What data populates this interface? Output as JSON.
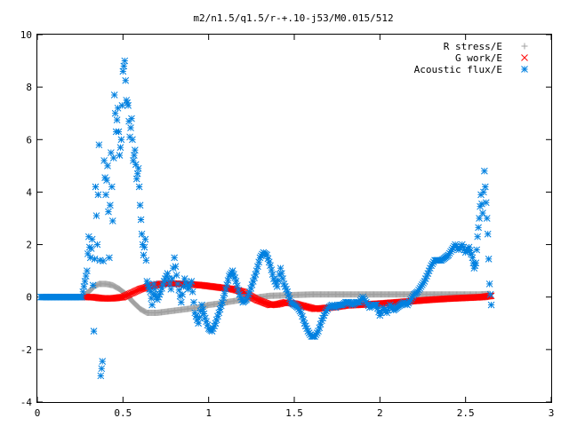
{
  "chart_data": {
    "type": "scatter",
    "title": "m2/n1.5/q1.5/r-+.10-j53/M0.015/512",
    "xlabel": "",
    "ylabel": "",
    "xlim": [
      0,
      3
    ],
    "ylim": [
      -4,
      10
    ],
    "x_ticks": [
      0,
      0.5,
      1,
      1.5,
      2,
      2.5,
      3
    ],
    "x_tick_labels": [
      "0",
      "0.5",
      "1",
      "1.5",
      "2",
      "2.5",
      "3"
    ],
    "y_ticks": [
      -4,
      -2,
      0,
      2,
      4,
      6,
      8,
      10
    ],
    "y_tick_labels": [
      "-4",
      "-2",
      "0",
      "2",
      "4",
      "6",
      "8",
      "10"
    ],
    "grid": false,
    "legend_position": "top-right",
    "series": [
      {
        "name": "R stress/E",
        "marker": "plus",
        "color": "#a0a0a0",
        "points": [
          [
            0.27,
            0.05
          ],
          [
            0.3,
            0.2
          ],
          [
            0.33,
            0.4
          ],
          [
            0.36,
            0.5
          ],
          [
            0.4,
            0.5
          ],
          [
            0.44,
            0.45
          ],
          [
            0.48,
            0.3
          ],
          [
            0.52,
            0.1
          ],
          [
            0.56,
            -0.2
          ],
          [
            0.6,
            -0.45
          ],
          [
            0.64,
            -0.6
          ],
          [
            0.7,
            -0.6
          ],
          [
            0.76,
            -0.55
          ],
          [
            0.82,
            -0.5
          ],
          [
            0.88,
            -0.45
          ],
          [
            0.94,
            -0.4
          ],
          [
            1.0,
            -0.3
          ],
          [
            1.06,
            -0.25
          ],
          [
            1.12,
            -0.18
          ],
          [
            1.18,
            -0.12
          ],
          [
            1.24,
            -0.06
          ],
          [
            1.3,
            0.0
          ],
          [
            1.36,
            0.05
          ],
          [
            1.42,
            0.06
          ],
          [
            1.5,
            0.08
          ],
          [
            1.6,
            0.1
          ],
          [
            1.7,
            0.1
          ],
          [
            1.8,
            0.1
          ],
          [
            1.9,
            0.1
          ],
          [
            2.0,
            0.1
          ],
          [
            2.1,
            0.1
          ],
          [
            2.2,
            0.1
          ],
          [
            2.3,
            0.1
          ],
          [
            2.4,
            0.1
          ],
          [
            2.5,
            0.1
          ],
          [
            2.58,
            0.1
          ],
          [
            2.64,
            0.12
          ]
        ]
      },
      {
        "name": "G work/E",
        "marker": "cross",
        "color": "#ff0000",
        "points": [
          [
            0.27,
            0.0
          ],
          [
            0.32,
            0.0
          ],
          [
            0.38,
            -0.05
          ],
          [
            0.44,
            -0.05
          ],
          [
            0.5,
            0.0
          ],
          [
            0.55,
            0.15
          ],
          [
            0.6,
            0.3
          ],
          [
            0.66,
            0.42
          ],
          [
            0.72,
            0.5
          ],
          [
            0.78,
            0.52
          ],
          [
            0.84,
            0.5
          ],
          [
            0.9,
            0.48
          ],
          [
            0.96,
            0.45
          ],
          [
            1.02,
            0.4
          ],
          [
            1.08,
            0.35
          ],
          [
            1.14,
            0.3
          ],
          [
            1.2,
            0.2
          ],
          [
            1.24,
            0.05
          ],
          [
            1.28,
            -0.1
          ],
          [
            1.32,
            -0.2
          ],
          [
            1.36,
            -0.3
          ],
          [
            1.4,
            -0.28
          ],
          [
            1.45,
            -0.2
          ],
          [
            1.5,
            -0.25
          ],
          [
            1.56,
            -0.35
          ],
          [
            1.62,
            -0.45
          ],
          [
            1.68,
            -0.42
          ],
          [
            1.74,
            -0.38
          ],
          [
            1.8,
            -0.32
          ],
          [
            1.86,
            -0.3
          ],
          [
            1.92,
            -0.28
          ],
          [
            2.0,
            -0.25
          ],
          [
            2.1,
            -0.2
          ],
          [
            2.2,
            -0.15
          ],
          [
            2.3,
            -0.1
          ],
          [
            2.4,
            -0.06
          ],
          [
            2.5,
            -0.03
          ],
          [
            2.6,
            0.0
          ],
          [
            2.65,
            0.05
          ]
        ]
      },
      {
        "name": "Acoustic flux/E",
        "marker": "star",
        "color": "#0080e0",
        "points": [
          [
            0.02,
            0.0
          ],
          [
            0.05,
            0.0
          ],
          [
            0.08,
            0.0
          ],
          [
            0.11,
            0.0
          ],
          [
            0.14,
            0.0
          ],
          [
            0.17,
            0.0
          ],
          [
            0.2,
            0.0
          ],
          [
            0.23,
            0.0
          ],
          [
            0.26,
            0.0
          ],
          [
            0.29,
            1.0
          ],
          [
            0.3,
            2.3
          ],
          [
            0.31,
            1.5
          ],
          [
            0.32,
            2.2
          ],
          [
            0.33,
            -1.3
          ],
          [
            0.34,
            4.2
          ],
          [
            0.35,
            2.0
          ],
          [
            0.36,
            5.8
          ],
          [
            0.37,
            -3.0
          ],
          [
            0.38,
            -2.45
          ],
          [
            0.39,
            5.2
          ],
          [
            0.4,
            3.9
          ],
          [
            0.41,
            5.0
          ],
          [
            0.42,
            1.5
          ],
          [
            0.43,
            5.5
          ],
          [
            0.44,
            2.9
          ],
          [
            0.45,
            7.7
          ],
          [
            0.46,
            6.3
          ],
          [
            0.47,
            7.2
          ],
          [
            0.48,
            5.4
          ],
          [
            0.49,
            6.0
          ],
          [
            0.5,
            8.6
          ],
          [
            0.51,
            9.0
          ],
          [
            0.52,
            7.5
          ],
          [
            0.53,
            7.3
          ],
          [
            0.54,
            6.1
          ],
          [
            0.55,
            6.8
          ],
          [
            0.56,
            5.2
          ],
          [
            0.57,
            5.6
          ],
          [
            0.58,
            4.5
          ],
          [
            0.59,
            4.9
          ],
          [
            0.6,
            3.5
          ],
          [
            0.61,
            2.4
          ],
          [
            0.62,
            1.6
          ],
          [
            0.63,
            2.2
          ],
          [
            0.64,
            0.6
          ],
          [
            0.65,
            0.4
          ],
          [
            0.66,
            0.2
          ],
          [
            0.67,
            -0.3
          ],
          [
            0.68,
            0.5
          ],
          [
            0.69,
            0.1
          ],
          [
            0.7,
            -0.1
          ],
          [
            0.72,
            0.2
          ],
          [
            0.74,
            0.6
          ],
          [
            0.76,
            0.9
          ],
          [
            0.78,
            0.3
          ],
          [
            0.8,
            1.5
          ],
          [
            0.82,
            0.5
          ],
          [
            0.84,
            -0.2
          ],
          [
            0.86,
            0.7
          ],
          [
            0.88,
            0.3
          ],
          [
            0.9,
            0.6
          ],
          [
            0.92,
            -0.6
          ],
          [
            0.94,
            -1.0
          ],
          [
            0.96,
            -0.3
          ],
          [
            0.98,
            -0.8
          ],
          [
            1.0,
            -1.2
          ],
          [
            1.02,
            -1.3
          ],
          [
            1.04,
            -1.0
          ],
          [
            1.06,
            -0.6
          ],
          [
            1.08,
            -0.2
          ],
          [
            1.1,
            0.3
          ],
          [
            1.12,
            0.8
          ],
          [
            1.14,
            1.0
          ],
          [
            1.16,
            0.6
          ],
          [
            1.18,
            0.1
          ],
          [
            1.2,
            -0.2
          ],
          [
            1.22,
            -0.1
          ],
          [
            1.24,
            0.2
          ],
          [
            1.26,
            0.6
          ],
          [
            1.28,
            1.0
          ],
          [
            1.3,
            1.5
          ],
          [
            1.32,
            1.7
          ],
          [
            1.34,
            1.6
          ],
          [
            1.36,
            1.2
          ],
          [
            1.38,
            0.7
          ],
          [
            1.4,
            0.4
          ],
          [
            1.42,
            1.1
          ],
          [
            1.44,
            0.5
          ],
          [
            1.46,
            0.2
          ],
          [
            1.48,
            -0.2
          ],
          [
            1.5,
            -0.3
          ],
          [
            1.52,
            -0.4
          ],
          [
            1.54,
            -0.6
          ],
          [
            1.56,
            -1.0
          ],
          [
            1.58,
            -1.3
          ],
          [
            1.6,
            -1.5
          ],
          [
            1.62,
            -1.5
          ],
          [
            1.64,
            -1.3
          ],
          [
            1.66,
            -0.9
          ],
          [
            1.68,
            -0.6
          ],
          [
            1.7,
            -0.4
          ],
          [
            1.72,
            -0.3
          ],
          [
            1.74,
            -0.4
          ],
          [
            1.76,
            -0.3
          ],
          [
            1.78,
            -0.3
          ],
          [
            1.8,
            -0.2
          ],
          [
            1.82,
            -0.2
          ],
          [
            1.84,
            -0.3
          ],
          [
            1.86,
            -0.2
          ],
          [
            1.88,
            -0.2
          ],
          [
            1.9,
            0.0
          ],
          [
            1.92,
            -0.2
          ],
          [
            1.94,
            -0.4
          ],
          [
            1.96,
            -0.3
          ],
          [
            1.98,
            -0.3
          ],
          [
            2.0,
            -0.7
          ],
          [
            2.02,
            -0.4
          ],
          [
            2.04,
            -0.6
          ],
          [
            2.06,
            -0.3
          ],
          [
            2.08,
            -0.5
          ],
          [
            2.1,
            -0.4
          ],
          [
            2.12,
            -0.3
          ],
          [
            2.14,
            -0.2
          ],
          [
            2.16,
            -0.3
          ],
          [
            2.18,
            -0.1
          ],
          [
            2.2,
            0.1
          ],
          [
            2.22,
            0.2
          ],
          [
            2.24,
            0.4
          ],
          [
            2.26,
            0.6
          ],
          [
            2.28,
            0.9
          ],
          [
            2.3,
            1.2
          ],
          [
            2.32,
            1.4
          ],
          [
            2.34,
            1.4
          ],
          [
            2.36,
            1.4
          ],
          [
            2.38,
            1.5
          ],
          [
            2.4,
            1.6
          ],
          [
            2.42,
            1.8
          ],
          [
            2.44,
            2.0
          ],
          [
            2.46,
            1.8
          ],
          [
            2.48,
            2.0
          ],
          [
            2.5,
            1.7
          ],
          [
            2.52,
            1.9
          ],
          [
            2.54,
            1.5
          ],
          [
            2.55,
            1.1
          ],
          [
            2.56,
            1.3
          ],
          [
            2.57,
            2.3
          ],
          [
            2.58,
            3.0
          ],
          [
            2.59,
            3.9
          ],
          [
            2.6,
            3.2
          ],
          [
            2.61,
            4.8
          ],
          [
            2.62,
            3.6
          ],
          [
            2.63,
            2.4
          ],
          [
            2.64,
            0.5
          ],
          [
            2.65,
            -0.3
          ]
        ]
      }
    ]
  }
}
